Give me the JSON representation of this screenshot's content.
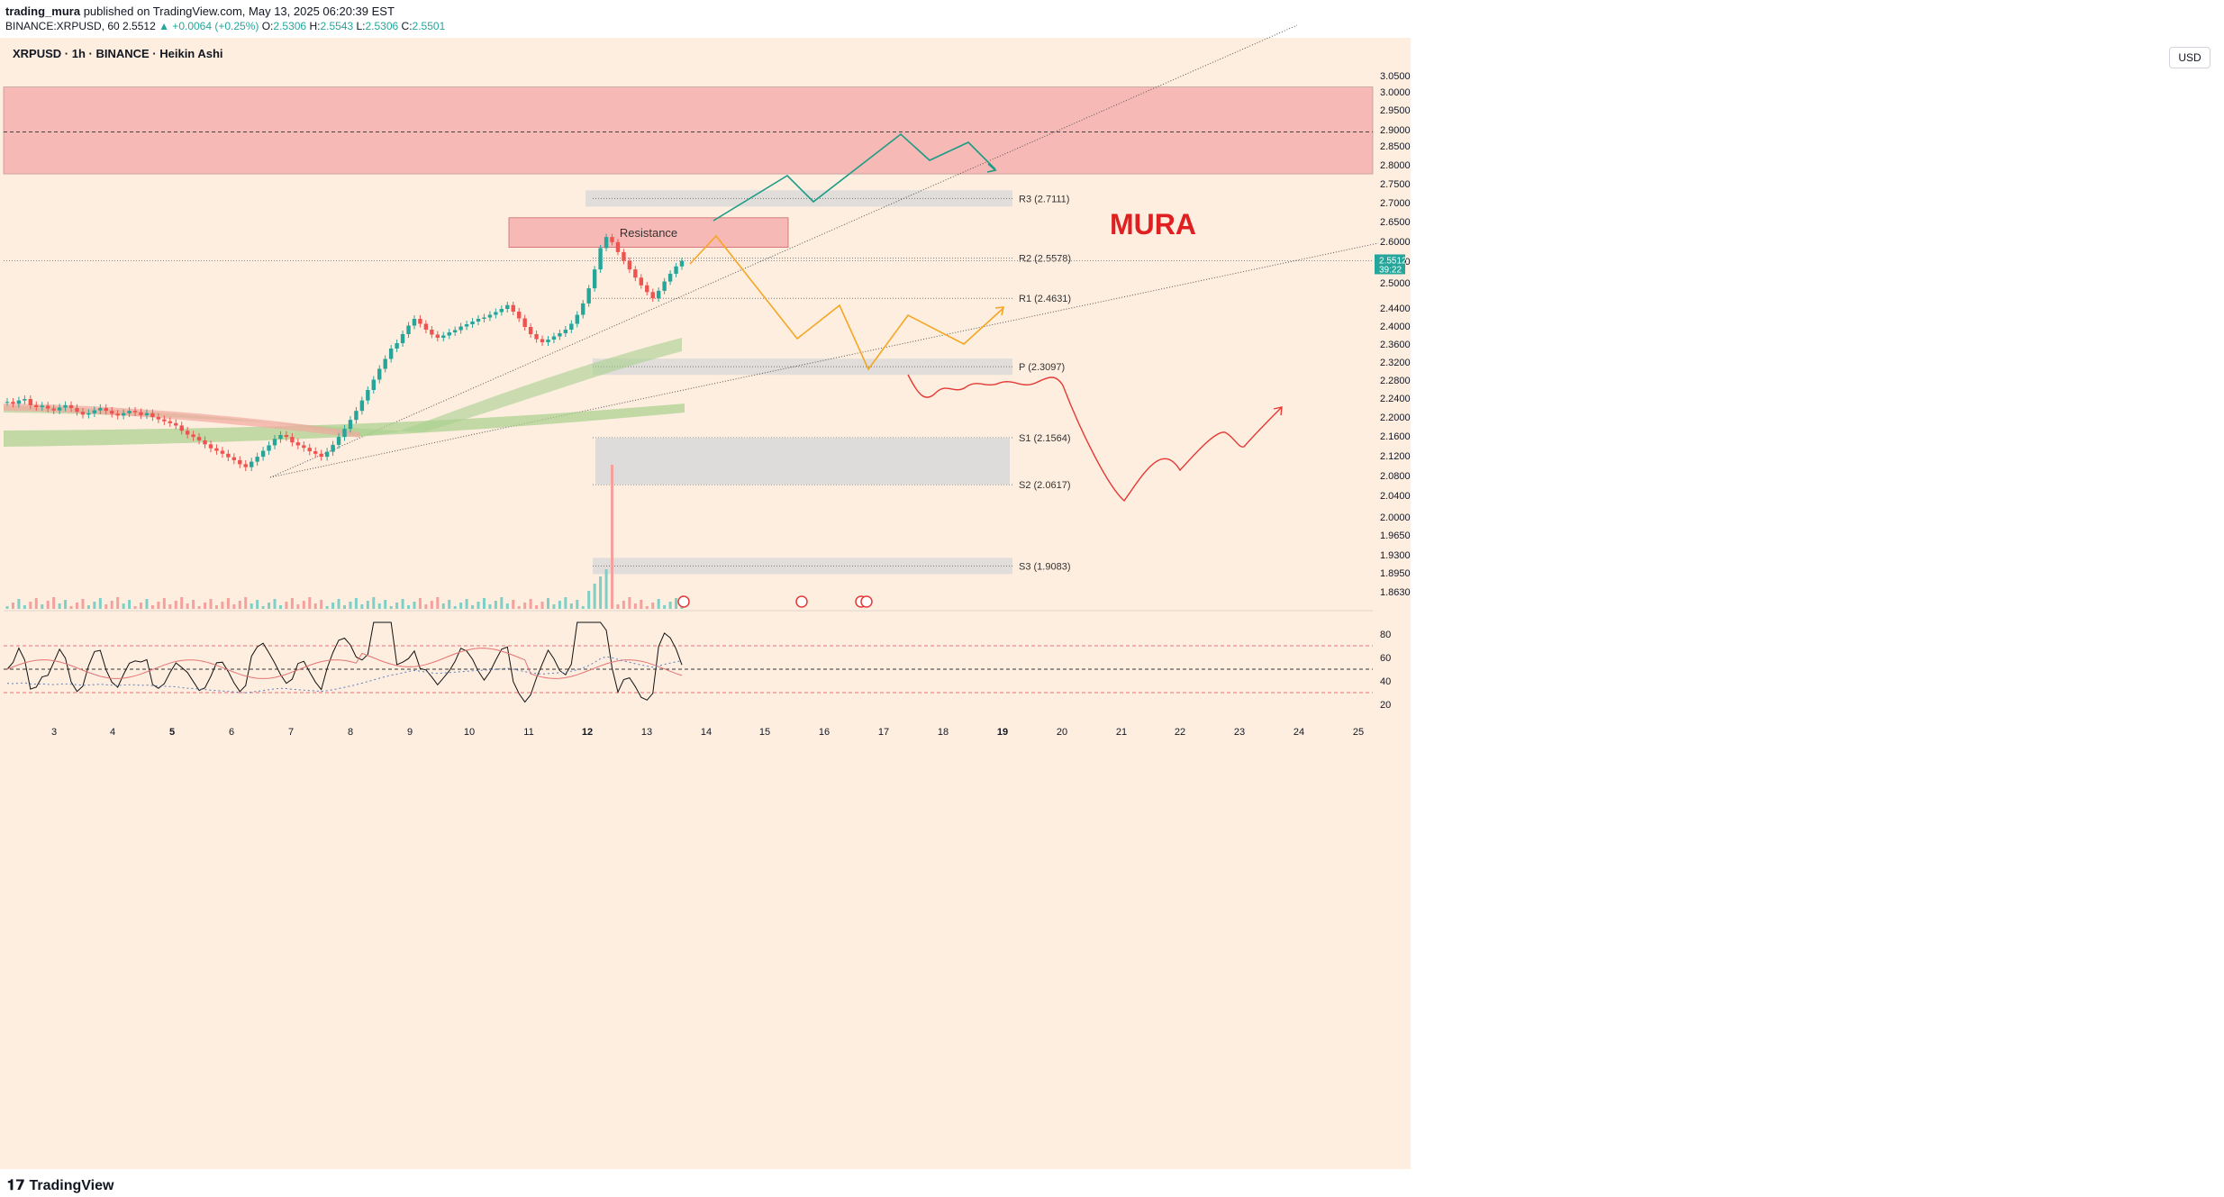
{
  "header": {
    "author": "trading_mura",
    "published": "published on TradingView.com, May 13, 2025 06:20:39 EST",
    "ticker_line": "BINANCE:XRPUSD, 60",
    "last": "2.5512",
    "change": "▲ +0.0064 (+0.25%)",
    "ohlc_o_label": "O:",
    "ohlc_o": "2.5306",
    "ohlc_h_label": "H:",
    "ohlc_h": "2.5543",
    "ohlc_l_label": "L:",
    "ohlc_l": "2.5306",
    "ohlc_c_label": "C:",
    "ohlc_c": "2.5501"
  },
  "symbol_title": "XRPUSD · 1h · BINANCE · Heikin Ashi",
  "currency_button": "USD",
  "watermark": "MURA",
  "footer_brand": "TradingView",
  "price_badge": {
    "price": "2.5512",
    "countdown": "39:22"
  },
  "chart_data": {
    "type": "candlestick",
    "price_axis": {
      "ticks": [
        3.05,
        3.0,
        2.95,
        2.9,
        2.85,
        2.8,
        2.75,
        2.7,
        2.65,
        2.6,
        2.55,
        2.5,
        2.44,
        2.4,
        2.36,
        2.32,
        2.28,
        2.24,
        2.2,
        2.16,
        2.12,
        2.08,
        2.04,
        2.0,
        1.965,
        1.93,
        1.895,
        1.863
      ],
      "tick_labels": [
        "3.0500",
        "3.0000",
        "2.9500",
        "2.9000",
        "2.8500",
        "2.8000",
        "2.7500",
        "2.7000",
        "2.6500",
        "2.6000",
        "2.5500",
        "2.5000",
        "2.4400",
        "2.4000",
        "2.3600",
        "2.3200",
        "2.2800",
        "2.2400",
        "2.2000",
        "2.1600",
        "2.1200",
        "2.0800",
        "2.0400",
        "2.0000",
        "1.9650",
        "1.9300",
        "1.8950",
        "1.8630"
      ]
    },
    "time_axis": [
      "3",
      "4",
      "5",
      "6",
      "7",
      "8",
      "9",
      "10",
      "11",
      "12",
      "13",
      "14",
      "15",
      "16",
      "17",
      "18",
      "19",
      "20",
      "21",
      "22",
      "23",
      "24",
      "25"
    ],
    "bold_time_labels": [
      "5",
      "12",
      "19"
    ],
    "pivot_levels": [
      {
        "label": "R3 (2.7111)",
        "value": 2.7111
      },
      {
        "label": "R2 (2.5578)",
        "value": 2.5578
      },
      {
        "label": "R1 (2.4631)",
        "value": 2.4631
      },
      {
        "label": "P (2.3097)",
        "value": 2.3097
      },
      {
        "label": "S1 (2.1564)",
        "value": 2.1564
      },
      {
        "label": "S2 (2.0617)",
        "value": 2.0617
      },
      {
        "label": "S3 (1.9083)",
        "value": 1.9083
      }
    ],
    "zones": [
      {
        "name": "supply-zone",
        "from": 2.776,
        "to": 3.015,
        "mid": 2.893,
        "color": "#f7b9b5"
      },
      {
        "name": "resistance",
        "label": "Resistance",
        "from": 2.585,
        "to": 2.66,
        "color": "#f7b9b5"
      }
    ],
    "candles_heikin_ashi_close": [
      2.232,
      2.228,
      2.235,
      2.238,
      2.225,
      2.221,
      2.224,
      2.218,
      2.214,
      2.22,
      2.225,
      2.219,
      2.211,
      2.205,
      2.208,
      2.214,
      2.219,
      2.213,
      2.207,
      2.203,
      2.208,
      2.213,
      2.21,
      2.204,
      2.208,
      2.2,
      2.195,
      2.191,
      2.187,
      2.182,
      2.171,
      2.163,
      2.158,
      2.151,
      2.143,
      2.135,
      2.13,
      2.124,
      2.117,
      2.111,
      2.103,
      2.097,
      2.108,
      2.118,
      2.13,
      2.141,
      2.154,
      2.162,
      2.158,
      2.147,
      2.141,
      2.136,
      2.129,
      2.124,
      2.118,
      2.128,
      2.142,
      2.158,
      2.175,
      2.194,
      2.213,
      2.235,
      2.258,
      2.281,
      2.305,
      2.327,
      2.35,
      2.362,
      2.382,
      2.401,
      2.416,
      2.405,
      2.392,
      2.381,
      2.374,
      2.379,
      2.386,
      2.391,
      2.399,
      2.404,
      2.41,
      2.416,
      2.419,
      2.425,
      2.431,
      2.438,
      2.447,
      2.432,
      2.417,
      2.398,
      2.382,
      2.371,
      2.364,
      2.37,
      2.377,
      2.384,
      2.392,
      2.405,
      2.425,
      2.451,
      2.487,
      2.531,
      2.583,
      2.611,
      2.598,
      2.573,
      2.551,
      2.531,
      2.512,
      2.494,
      2.478,
      2.463,
      2.481,
      2.503,
      2.521,
      2.538,
      2.551
    ],
    "rsi": {
      "levels": [
        70,
        50,
        30
      ],
      "tick_labels": [
        "80",
        "60",
        "40",
        "20"
      ],
      "last": 63
    },
    "projections": [
      {
        "name": "bullish-path",
        "color": "#1b9c85"
      },
      {
        "name": "base-path",
        "color": "#f5a623"
      },
      {
        "name": "bearish-path",
        "color": "#e53935"
      }
    ]
  }
}
